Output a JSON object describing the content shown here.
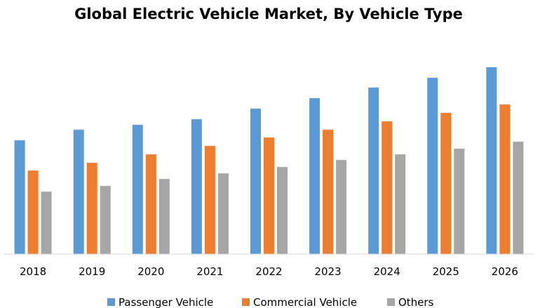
{
  "chart_data": {
    "type": "bar",
    "title": "Global Electric Vehicle Market, By Vehicle Type",
    "xlabel": "",
    "ylabel": "",
    "categories": [
      "2018",
      "2019",
      "2020",
      "2021",
      "2022",
      "2023",
      "2024",
      "2025",
      "2026"
    ],
    "series": [
      {
        "name": "Passenger Vehicle",
        "color": "#5B9BD5",
        "values": [
          162,
          177,
          184,
          192,
          207,
          222,
          237,
          251,
          266
        ]
      },
      {
        "name": "Commercial Vehicle",
        "color": "#ED7D31",
        "values": [
          119,
          130,
          142,
          154,
          166,
          177,
          189,
          201,
          213
        ]
      },
      {
        "name": "Others",
        "color": "#A5A5A5",
        "values": [
          89,
          97,
          107,
          115,
          124,
          134,
          142,
          150,
          160
        ]
      }
    ],
    "ylim": [
      0,
      280
    ],
    "grid": false,
    "legend_position": "bottom"
  }
}
